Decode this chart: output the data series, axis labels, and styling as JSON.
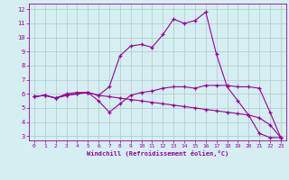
{
  "xlabel": "Windchill (Refroidissement éolien,°C)",
  "background_color": "#d4eef1",
  "line_color": "#990099",
  "grid_color": "#b0c8ca",
  "xlim": [
    -0.5,
    23.5
  ],
  "ylim": [
    2.7,
    12.4
  ],
  "xticks": [
    0,
    1,
    2,
    3,
    4,
    5,
    6,
    7,
    8,
    9,
    10,
    11,
    12,
    13,
    14,
    15,
    16,
    17,
    18,
    19,
    20,
    21,
    22,
    23
  ],
  "yticks": [
    3,
    4,
    5,
    6,
    7,
    8,
    9,
    10,
    11,
    12
  ],
  "series": [
    {
      "x": [
        0,
        1,
        2,
        3,
        4,
        5,
        6,
        7,
        8,
        9,
        10,
        11,
        12,
        13,
        14,
        15,
        16,
        17,
        18,
        19,
        20,
        21,
        22,
        23
      ],
      "y": [
        5.8,
        5.9,
        5.7,
        5.9,
        6.0,
        6.1,
        5.9,
        6.5,
        8.7,
        9.4,
        9.5,
        9.3,
        10.2,
        11.3,
        11.0,
        11.2,
        11.8,
        8.8,
        6.5,
        5.5,
        4.5,
        3.2,
        2.9,
        2.9
      ]
    },
    {
      "x": [
        0,
        1,
        2,
        3,
        4,
        5,
        6,
        7,
        8,
        9,
        10,
        11,
        12,
        13,
        14,
        15,
        16,
        17,
        18,
        19,
        20,
        21,
        22,
        23
      ],
      "y": [
        5.8,
        5.9,
        5.7,
        6.0,
        6.1,
        6.1,
        5.5,
        4.7,
        5.3,
        5.9,
        6.1,
        6.2,
        6.4,
        6.5,
        6.5,
        6.4,
        6.6,
        6.6,
        6.6,
        6.5,
        6.5,
        6.4,
        4.7,
        2.9
      ]
    },
    {
      "x": [
        0,
        1,
        2,
        3,
        4,
        5,
        6,
        7,
        8,
        9,
        10,
        11,
        12,
        13,
        14,
        15,
        16,
        17,
        18,
        19,
        20,
        21,
        22,
        23
      ],
      "y": [
        5.8,
        5.9,
        5.7,
        5.9,
        6.0,
        6.1,
        5.9,
        5.8,
        5.7,
        5.6,
        5.5,
        5.4,
        5.3,
        5.2,
        5.1,
        5.0,
        4.9,
        4.8,
        4.7,
        4.6,
        4.5,
        4.3,
        3.8,
        2.9
      ]
    }
  ]
}
